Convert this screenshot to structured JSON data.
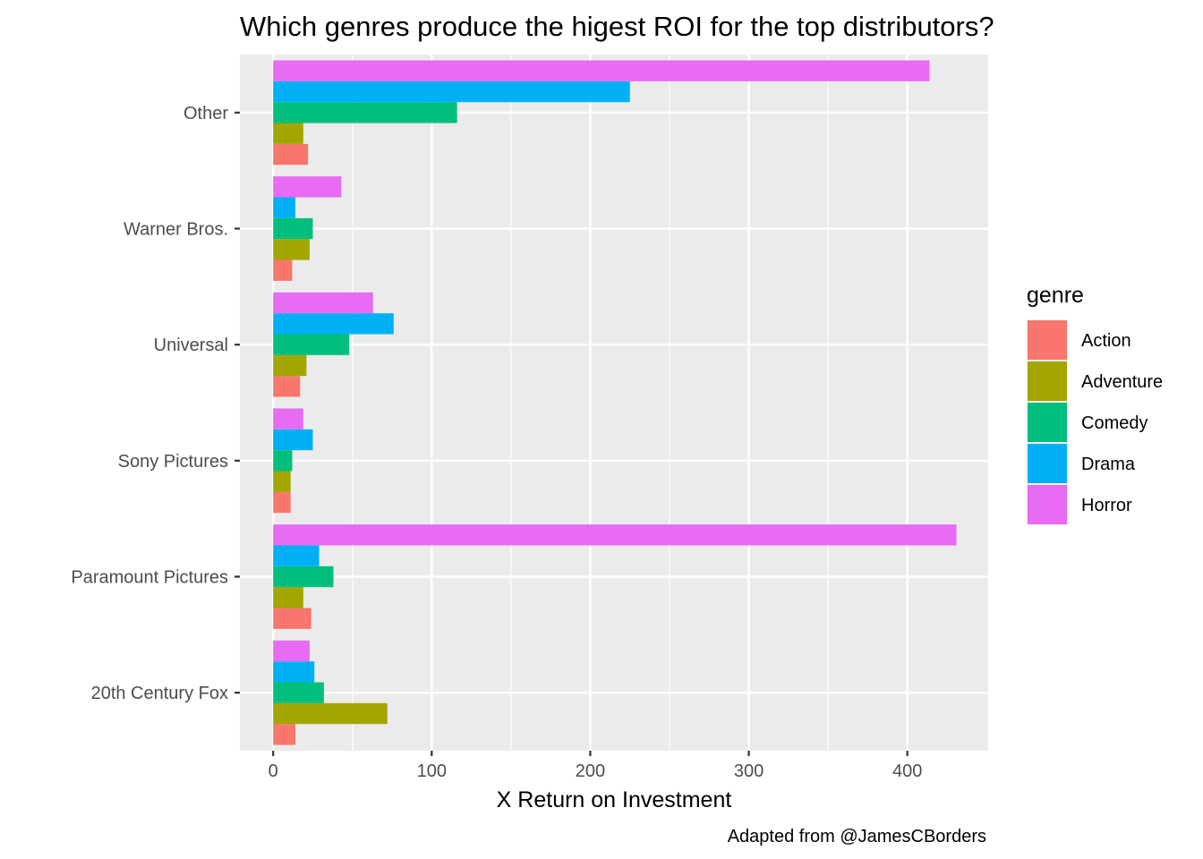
{
  "chart_data": {
    "type": "bar",
    "orientation": "horizontal",
    "title": "Which genres produce the higest ROI for the top distributors?",
    "xlabel": "X Return on Investment",
    "ylabel": "",
    "caption": "Adapted from @JamesCBorders",
    "xlim": [
      -21,
      451
    ],
    "x_ticks": [
      0,
      100,
      200,
      300,
      400
    ],
    "x_tick_labels": [
      "0",
      "100",
      "200",
      "300",
      "400"
    ],
    "categories": [
      "20th Century Fox",
      "Paramount Pictures",
      "Sony Pictures",
      "Universal",
      "Warner Bros.",
      "Other"
    ],
    "legend": {
      "title": "genre",
      "position": "right"
    },
    "grid": true,
    "series": [
      {
        "name": "Action",
        "color": "#F8766D",
        "values": [
          14,
          24,
          11,
          17,
          12,
          22
        ]
      },
      {
        "name": "Adventure",
        "color": "#A3A500",
        "values": [
          72,
          19,
          11,
          21,
          23,
          19
        ]
      },
      {
        "name": "Comedy",
        "color": "#00BF7D",
        "values": [
          32,
          38,
          12,
          48,
          25,
          116
        ]
      },
      {
        "name": "Drama",
        "color": "#00B0F6",
        "values": [
          26,
          29,
          25,
          76,
          14,
          225
        ]
      },
      {
        "name": "Horror",
        "color": "#E76BF3",
        "values": [
          23,
          431,
          19,
          63,
          43,
          414
        ]
      }
    ]
  }
}
